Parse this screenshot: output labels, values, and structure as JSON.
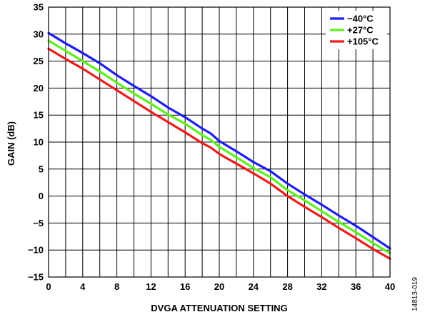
{
  "chart_data": {
    "type": "line",
    "xlabel": "DVGA ATTENUATION SETTING",
    "ylabel": "GAIN (dB)",
    "xlim": [
      0,
      40
    ],
    "ylim": [
      -15,
      35
    ],
    "x_ticks": [
      0,
      2,
      4,
      6,
      8,
      10,
      12,
      14,
      16,
      18,
      20,
      22,
      24,
      26,
      28,
      30,
      32,
      34,
      36,
      38,
      40
    ],
    "x_tick_labels": [
      "0",
      "4",
      "8",
      "12",
      "16",
      "20",
      "24",
      "28",
      "32",
      "36",
      "40"
    ],
    "y_tick_labels": [
      "35",
      "30",
      "25",
      "20",
      "15",
      "10",
      "5",
      "0",
      "−5",
      "−10",
      "−15"
    ],
    "grid": true,
    "legend_position": "top-right",
    "series": [
      {
        "name": "−40°C",
        "color": "#1d1df2",
        "x": [
          0,
          2,
          4,
          6,
          8,
          10,
          12,
          14,
          16,
          18,
          19,
          20,
          22,
          24,
          26,
          28,
          30,
          32,
          34,
          36,
          38,
          40
        ],
        "y": [
          30.2,
          28.3,
          26.5,
          24.6,
          22.4,
          20.4,
          18.5,
          16.4,
          14.6,
          12.5,
          11.6,
          10.2,
          8.3,
          6.3,
          4.6,
          2.3,
          0.3,
          -1.6,
          -3.6,
          -5.5,
          -7.6,
          -9.7
        ]
      },
      {
        "name": "+27°C",
        "color": "#5ef01e",
        "x": [
          0,
          2,
          4,
          6,
          8,
          10,
          12,
          14,
          16,
          18,
          19,
          20,
          22,
          24,
          26,
          28,
          30,
          32,
          34,
          36,
          38,
          40
        ],
        "y": [
          28.8,
          26.9,
          25.0,
          23.1,
          21.0,
          19.0,
          17.1,
          15.1,
          13.4,
          11.3,
          10.4,
          9.1,
          7.2,
          5.2,
          3.5,
          1.1,
          -0.8,
          -2.8,
          -4.8,
          -6.7,
          -8.7,
          -10.6
        ]
      },
      {
        "name": "+105°C",
        "color": "#ee1c1c",
        "x": [
          0,
          2,
          4,
          6,
          8,
          10,
          12,
          14,
          16,
          18,
          19,
          20,
          22,
          24,
          26,
          28,
          30,
          32,
          34,
          36,
          38,
          40
        ],
        "y": [
          27.3,
          25.4,
          23.6,
          21.6,
          19.6,
          17.6,
          15.6,
          13.7,
          11.8,
          9.8,
          9.0,
          7.8,
          6.0,
          4.2,
          2.3,
          0.0,
          -2.0,
          -3.9,
          -5.9,
          -7.8,
          -9.8,
          -11.6
        ]
      }
    ]
  },
  "figure_id": "14813-019"
}
